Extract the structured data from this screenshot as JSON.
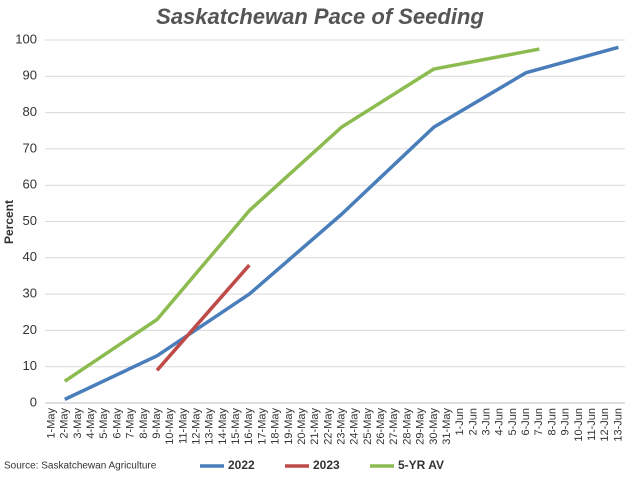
{
  "chart_data": {
    "type": "line",
    "title": "Saskatchewan Pace of Seeding",
    "y_label": "Percent",
    "source": "Source: Saskatchewan Agriculture",
    "categories": [
      "1-May",
      "2-May",
      "3-May",
      "4-May",
      "5-May",
      "6-May",
      "7-May",
      "8-May",
      "9-May",
      "10-May",
      "11-May",
      "12-May",
      "13-May",
      "14-May",
      "15-May",
      "16-May",
      "17-May",
      "18-May",
      "19-May",
      "20-May",
      "21-May",
      "22-May",
      "23-May",
      "24-May",
      "25-May",
      "26-May",
      "27-May",
      "28-May",
      "29-May",
      "30-May",
      "31-May",
      "1-Jun",
      "2-Jun",
      "3-Jun",
      "4-Jun",
      "5-Jun",
      "6-Jun",
      "7-Jun",
      "8-Jun",
      "9-Jun",
      "10-Jun",
      "11-Jun",
      "12-Jun",
      "13-Jun"
    ],
    "series": [
      {
        "name": "2022",
        "color": "#4a7ebb",
        "x": [
          "2-May",
          "9-May",
          "16-May",
          "23-May",
          "30-May",
          "6-Jun",
          "13-Jun"
        ],
        "values": [
          1,
          13,
          30,
          52,
          76,
          91,
          98
        ]
      },
      {
        "name": "2023",
        "color": "#be4b48",
        "x": [
          "9-May",
          "16-May"
        ],
        "values": [
          9,
          38
        ]
      },
      {
        "name": "5-YR AV",
        "color": "#8cbb4f",
        "x": [
          "2-May",
          "9-May",
          "16-May",
          "23-May",
          "30-May",
          "7-Jun"
        ],
        "values": [
          6,
          23,
          53,
          76,
          92,
          97.5
        ]
      }
    ],
    "ylim": [
      0,
      100
    ],
    "yticks": [
      0,
      10,
      20,
      30,
      40,
      50,
      60,
      70,
      80,
      90,
      100
    ],
    "grid": true,
    "legend": "bottom"
  }
}
